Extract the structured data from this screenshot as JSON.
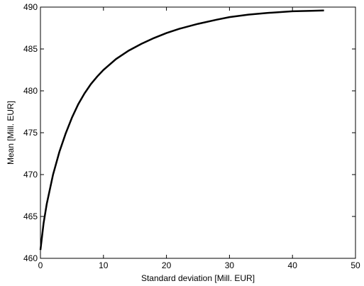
{
  "chart_data": {
    "type": "line",
    "title": "",
    "xlabel": "Standard deviation [Mill. EUR]",
    "ylabel": "Mean [Mill. EUR]",
    "xlim": [
      0,
      50
    ],
    "ylim": [
      460,
      490
    ],
    "xticks": [
      0,
      10,
      20,
      30,
      40,
      50
    ],
    "yticks": [
      460,
      465,
      470,
      475,
      480,
      485,
      490
    ],
    "grid": false,
    "line_color": "#000000",
    "series": [
      {
        "x": [
          0,
          0.5,
          1,
          2,
          3,
          4,
          5,
          6,
          7,
          8,
          9,
          10,
          12,
          14,
          16,
          18,
          20,
          22,
          25,
          28,
          30,
          33,
          36,
          40,
          43,
          45
        ],
        "y": [
          461,
          464.2,
          466.5,
          470.0,
          472.7,
          474.9,
          476.8,
          478.4,
          479.7,
          480.8,
          481.7,
          482.5,
          483.8,
          484.8,
          485.6,
          486.3,
          486.9,
          487.4,
          488.0,
          488.5,
          488.8,
          489.1,
          489.3,
          489.5,
          489.55,
          489.6
        ]
      }
    ]
  }
}
